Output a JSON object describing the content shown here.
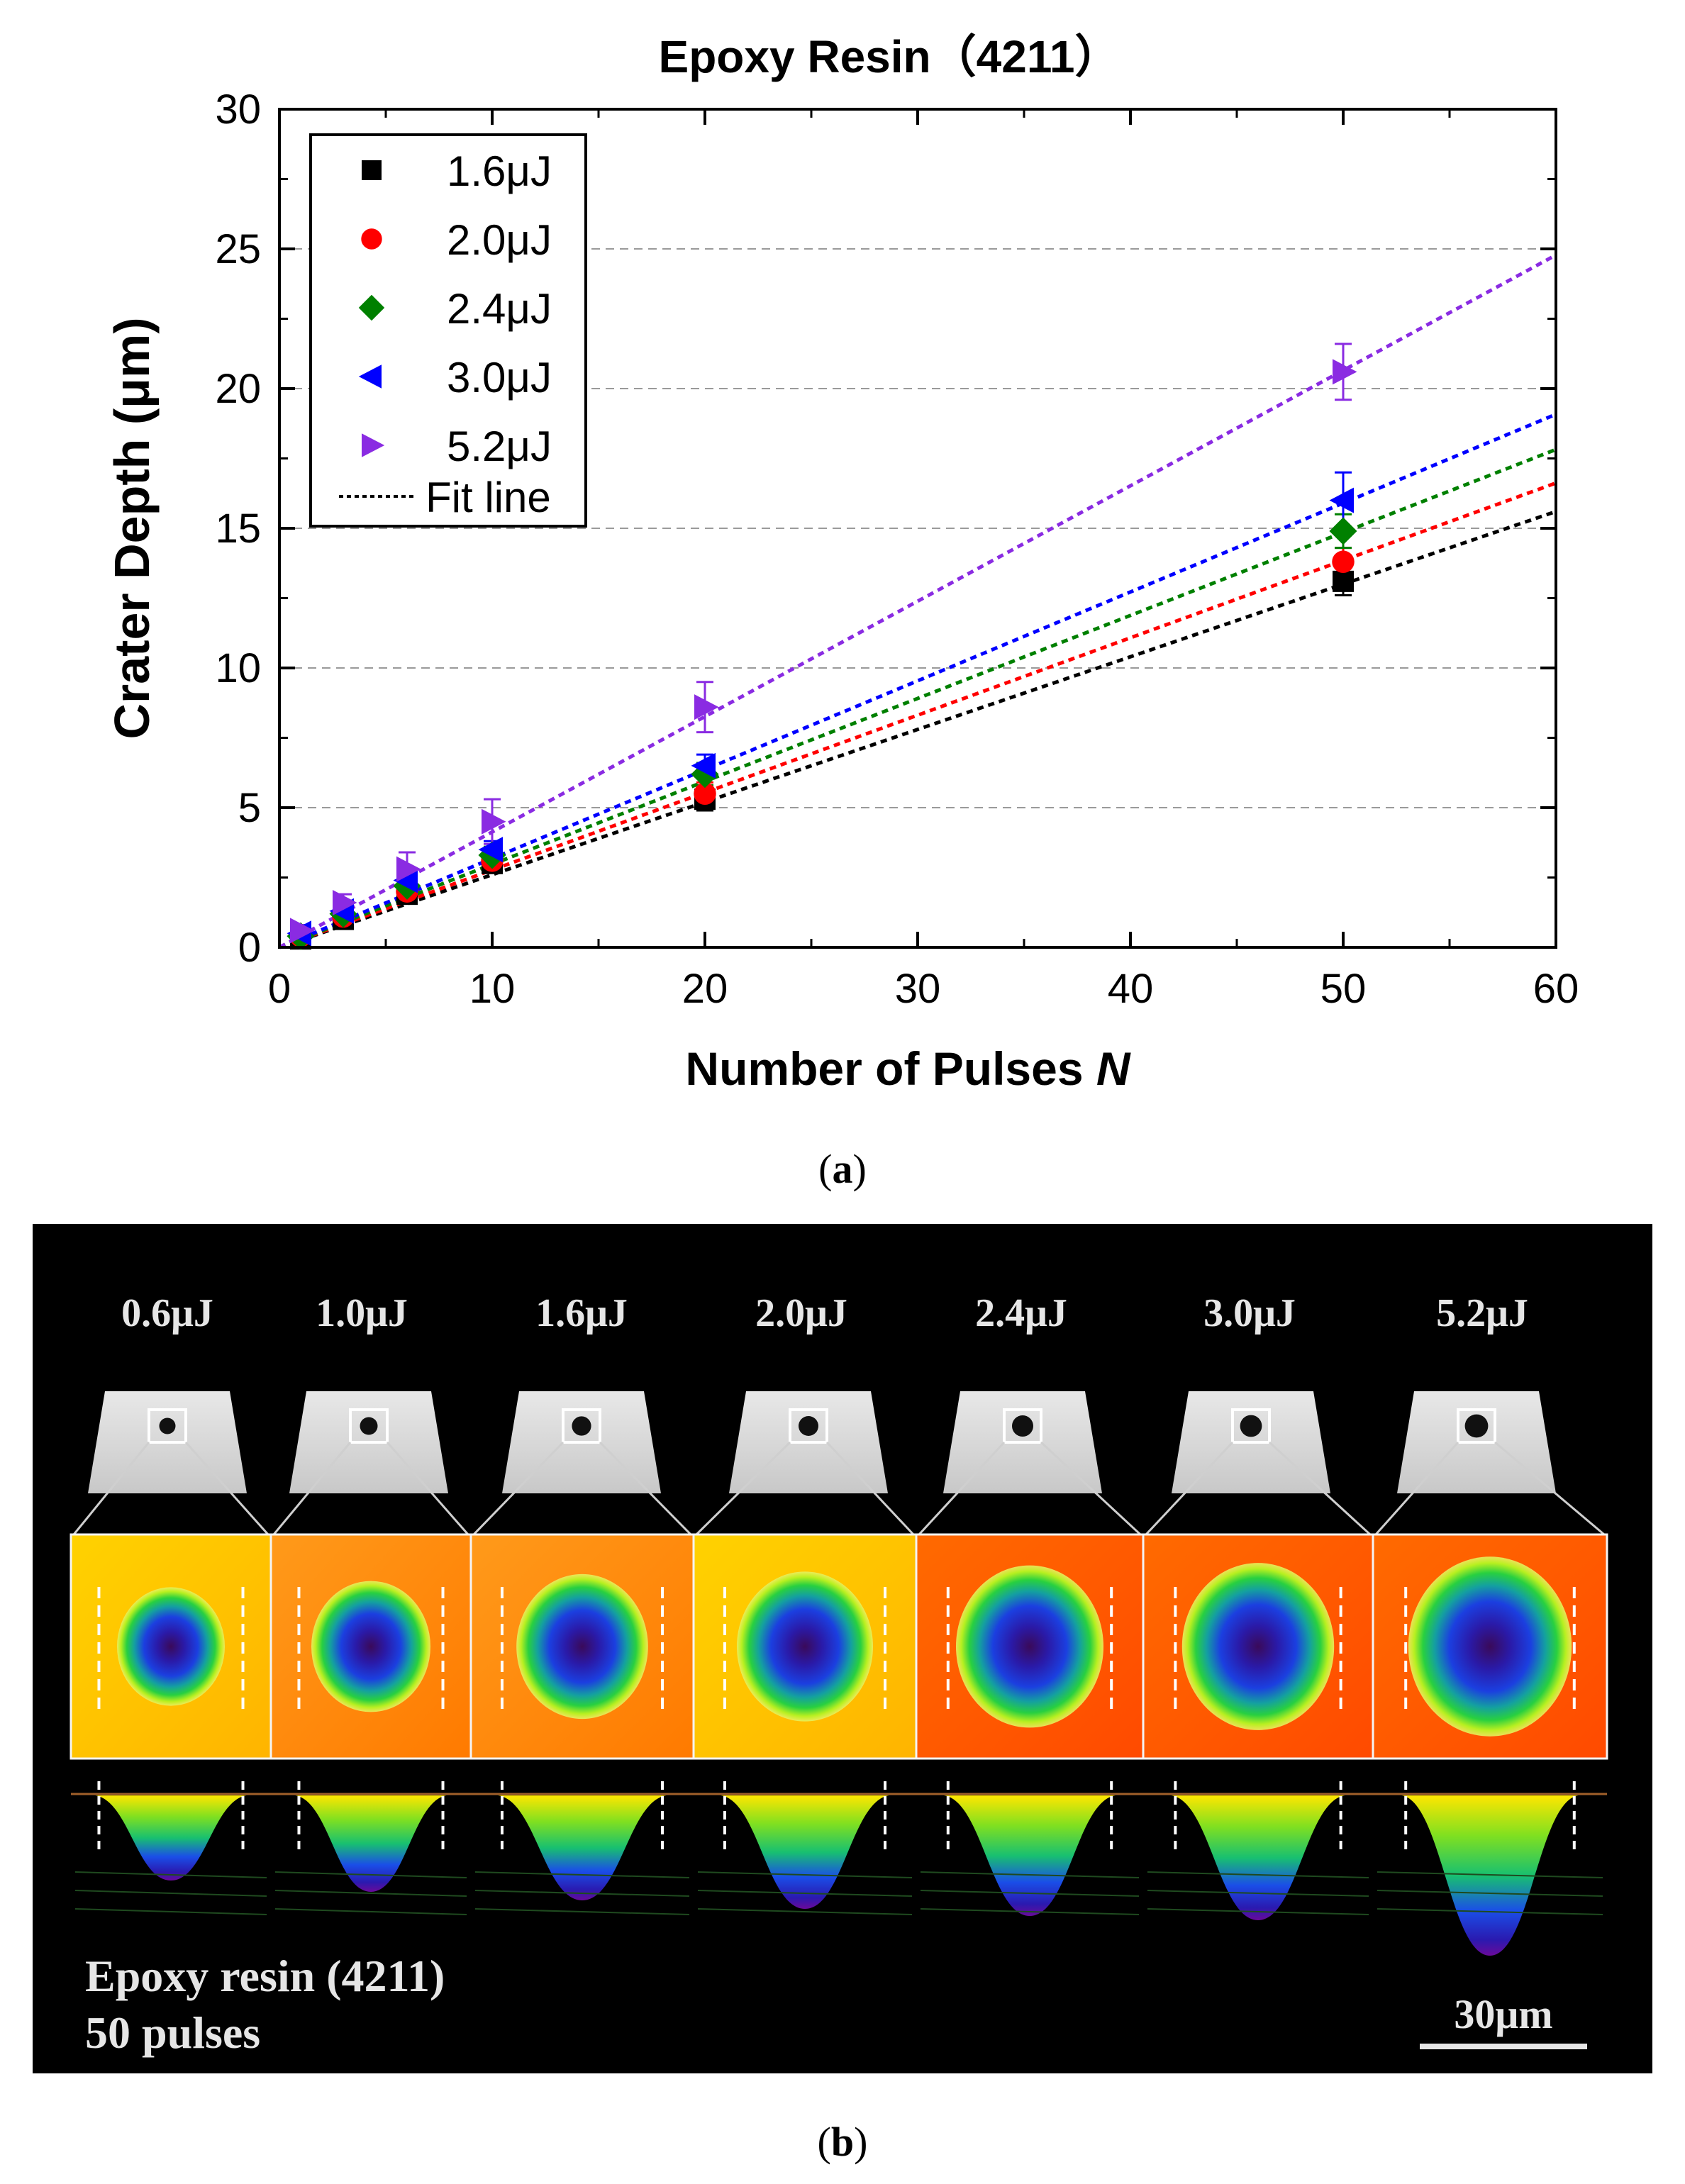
{
  "chart_data": {
    "type": "scatter",
    "title": "Epoxy Resin（4211）",
    "xlabel": "Number of Pulses",
    "xlabel_var": "N",
    "ylabel": "Crater Depth (μm)",
    "xlim": [
      0,
      60
    ],
    "ylim": [
      0,
      30
    ],
    "xticks": [
      0,
      10,
      20,
      30,
      40,
      50,
      60
    ],
    "yticks": [
      0,
      5,
      10,
      15,
      20,
      25,
      30
    ],
    "grid": "horizontal dashed at 5, 10, 15, 20, 25",
    "legend_position": "top-left",
    "series": [
      {
        "name": "1.6μJ",
        "marker": "square",
        "color": "#000000",
        "x": [
          1,
          3,
          6,
          10,
          20,
          50
        ],
        "y": [
          0.3,
          1.0,
          1.9,
          3.0,
          5.3,
          13.1
        ],
        "err": [
          0.2,
          0.3,
          0.3,
          0.3,
          0.4,
          0.5
        ],
        "fit": [
          0.0,
          0.26
        ]
      },
      {
        "name": "2.0μJ",
        "marker": "circle",
        "color": "#ff0000",
        "x": [
          1,
          3,
          6,
          10,
          20,
          50
        ],
        "y": [
          0.4,
          1.1,
          2.0,
          3.1,
          5.5,
          13.8
        ],
        "err": [
          0.2,
          0.3,
          0.3,
          0.3,
          0.4,
          0.5
        ],
        "fit": [
          0.0,
          0.277
        ]
      },
      {
        "name": "2.4μJ",
        "marker": "diamond",
        "color": "#008000",
        "x": [
          1,
          3,
          6,
          10,
          20,
          50
        ],
        "y": [
          0.4,
          1.2,
          2.2,
          3.3,
          6.2,
          14.9
        ],
        "err": [
          0.2,
          0.3,
          0.3,
          0.3,
          0.4,
          0.6
        ],
        "fit": [
          0.0,
          0.297
        ]
      },
      {
        "name": "3.0μJ",
        "marker": "triangle-left",
        "color": "#0000ff",
        "x": [
          1,
          3,
          6,
          10,
          20,
          50
        ],
        "y": [
          0.5,
          1.3,
          2.4,
          3.5,
          6.5,
          16.0
        ],
        "err": [
          0.2,
          0.3,
          0.3,
          0.3,
          0.4,
          1.0
        ],
        "fit": [
          0.0,
          0.318
        ]
      },
      {
        "name": "5.2μJ",
        "marker": "triangle-right",
        "color": "#8a2be2",
        "x": [
          1,
          3,
          6,
          10,
          20,
          50
        ],
        "y": [
          0.6,
          1.6,
          2.8,
          4.5,
          8.6,
          20.6
        ],
        "err": [
          0.2,
          0.3,
          0.6,
          0.8,
          0.9,
          1.0
        ],
        "fit": [
          0.0,
          0.413
        ]
      }
    ],
    "fit_legend": "Fit line"
  },
  "captions": {
    "a": "a",
    "b": "b"
  },
  "panel_b": {
    "energies": [
      "0.6μJ",
      "1.0μJ",
      "1.6μJ",
      "2.0μJ",
      "2.4μJ",
      "3.0μJ",
      "5.2μJ"
    ],
    "crater_size": [
      0.45,
      0.55,
      0.66,
      0.7,
      0.8,
      0.84,
      0.94
    ],
    "crater_depth": [
      0.3,
      0.38,
      0.44,
      0.5,
      0.55,
      0.58,
      0.83
    ],
    "label_material": "Epoxy resin (4211)",
    "label_pulses": "50 pulses",
    "scale_bar": "30μm"
  }
}
